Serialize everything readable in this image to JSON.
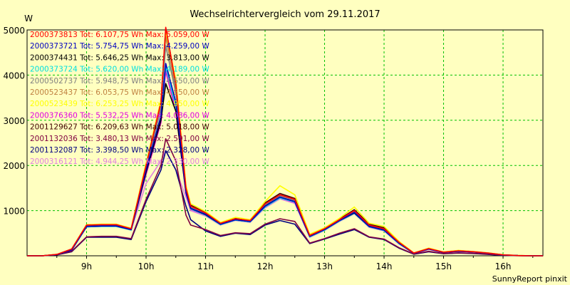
{
  "chart_data": {
    "type": "line",
    "title": "Wechselrichtervergleich vom 29.11.2017",
    "ylabel": "W",
    "footer": "SunnyReport pinxit",
    "x_ticks": [
      "9h",
      "10h",
      "11h",
      "12h",
      "13h",
      "14h",
      "15h",
      "16h"
    ],
    "y_ticks": [
      1000,
      2000,
      3000,
      4000,
      5000
    ],
    "xlim": [
      8.0,
      16.67
    ],
    "ylim": [
      0,
      5000
    ],
    "grid": true,
    "legend_placement": "top-left",
    "x": [
      8.0,
      8.25,
      8.5,
      8.75,
      9.0,
      9.25,
      9.5,
      9.75,
      10.0,
      10.25,
      10.33,
      10.5,
      10.67,
      10.75,
      11.0,
      11.25,
      11.5,
      11.75,
      12.0,
      12.25,
      12.5,
      12.75,
      13.0,
      13.25,
      13.5,
      13.75,
      14.0,
      14.25,
      14.5,
      14.75,
      15.0,
      15.25,
      15.5,
      15.75,
      16.0,
      16.25,
      16.5,
      16.67
    ],
    "series": [
      {
        "name": "2000373813 Tot: 6.107,75 Wh Max: 5.059,00 W",
        "color": "#ff0000",
        "values": [
          0,
          0,
          30,
          150,
          680,
          690,
          690,
          600,
          2000,
          3400,
          5059,
          3800,
          1500,
          1100,
          950,
          720,
          820,
          780,
          1150,
          1350,
          1250,
          450,
          600,
          800,
          1000,
          680,
          600,
          300,
          60,
          160,
          80,
          110,
          90,
          60,
          20,
          5,
          0,
          0
        ]
      },
      {
        "name": "2000373721 Tot: 5.754,75 Wh Max: 4.259,00 W",
        "color": "#0000c0",
        "values": [
          0,
          0,
          25,
          130,
          650,
          660,
          660,
          580,
          1900,
          3100,
          4259,
          3400,
          1400,
          1050,
          920,
          700,
          800,
          760,
          1100,
          1300,
          1200,
          430,
          580,
          780,
          960,
          650,
          570,
          280,
          55,
          150,
          75,
          100,
          85,
          55,
          18,
          4,
          0,
          0
        ]
      },
      {
        "name": "2000374431 Tot: 5.646,25 Wh Max: 3.813,00 W",
        "color": "#000000",
        "values": [
          0,
          0,
          25,
          130,
          650,
          660,
          660,
          580,
          1850,
          3000,
          3813,
          3200,
          1400,
          1050,
          910,
          700,
          800,
          760,
          1100,
          1300,
          1200,
          430,
          580,
          780,
          950,
          650,
          570,
          280,
          55,
          150,
          75,
          100,
          85,
          55,
          18,
          4,
          0,
          0
        ]
      },
      {
        "name": "2000373724 Tot: 5.620,00 Wh Max: 4.189,00 W",
        "color": "#00e0e0",
        "values": [
          0,
          0,
          25,
          130,
          640,
          650,
          650,
          570,
          1850,
          3050,
          4189,
          3300,
          1400,
          1040,
          900,
          690,
          790,
          750,
          1080,
          1280,
          1190,
          420,
          570,
          770,
          940,
          640,
          560,
          270,
          55,
          150,
          75,
          100,
          85,
          55,
          18,
          4,
          0,
          0
        ]
      },
      {
        "name": "2000502737 Tot: 5.948,75 Wh Max: 4.650,00 W",
        "color": "#808080",
        "values": [
          0,
          0,
          28,
          140,
          670,
          680,
          680,
          590,
          1950,
          3250,
          4650,
          3600,
          1450,
          1080,
          930,
          710,
          810,
          770,
          1120,
          1330,
          1230,
          440,
          590,
          790,
          980,
          670,
          590,
          290,
          58,
          155,
          78,
          105,
          88,
          58,
          19,
          5,
          0,
          0
        ]
      },
      {
        "name": "2000523437 Tot: 6.053,75 Wh Max: 4.850,00 W",
        "color": "#c08040",
        "values": [
          0,
          0,
          30,
          145,
          675,
          685,
          685,
          595,
          1980,
          3350,
          4850,
          3700,
          1480,
          1090,
          940,
          715,
          815,
          775,
          1140,
          1340,
          1240,
          445,
          595,
          795,
          990,
          675,
          595,
          295,
          60,
          158,
          79,
          108,
          89,
          59,
          20,
          5,
          0,
          0
        ]
      },
      {
        "name": "2000523439 Tot: 6.253,25 Wh Max: 4.950,00 W",
        "color": "#ffff00",
        "values": [
          0,
          0,
          30,
          150,
          690,
          700,
          700,
          610,
          2050,
          3450,
          4950,
          3900,
          1550,
          1150,
          980,
          740,
          850,
          800,
          1200,
          1550,
          1350,
          480,
          620,
          830,
          1080,
          720,
          650,
          320,
          65,
          170,
          85,
          120,
          95,
          65,
          22,
          6,
          0,
          0
        ]
      },
      {
        "name": "2000376360 Tot: 5.532,25 Wh Max: 4.086,00 W",
        "color": "#e000e0",
        "values": [
          0,
          0,
          25,
          130,
          640,
          650,
          650,
          570,
          1800,
          2950,
          4086,
          3200,
          1380,
          1030,
          900,
          690,
          790,
          750,
          1080,
          1280,
          1180,
          420,
          570,
          770,
          940,
          640,
          560,
          270,
          55,
          150,
          75,
          100,
          85,
          55,
          18,
          4,
          0,
          0
        ]
      },
      {
        "name": "2001129627 Tot: 6.209,63 Wh Max: 5.018,00 W",
        "color": "#400000",
        "values": [
          0,
          0,
          30,
          150,
          685,
          695,
          695,
          605,
          2020,
          3420,
          5018,
          3850,
          1520,
          1120,
          960,
          730,
          830,
          790,
          1170,
          1380,
          1270,
          460,
          610,
          810,
          1020,
          700,
          620,
          310,
          62,
          165,
          82,
          115,
          92,
          62,
          21,
          6,
          0,
          0
        ]
      },
      {
        "name": "2001132036 Tot: 3.480,13 Wh Max: 2.591,00 W",
        "color": "#800040",
        "values": [
          0,
          0,
          20,
          100,
          420,
          430,
          430,
          380,
          1250,
          2000,
          2591,
          2100,
          900,
          680,
          580,
          450,
          510,
          490,
          700,
          820,
          760,
          280,
          380,
          500,
          600,
          420,
          370,
          180,
          40,
          100,
          50,
          65,
          55,
          35,
          12,
          3,
          0,
          0
        ]
      },
      {
        "name": "2001132087 Tot: 3.398,50 Wh Max: 2.328,00 W",
        "color": "#000080",
        "values": [
          0,
          0,
          20,
          90,
          410,
          410,
          410,
          360,
          1200,
          1900,
          2328,
          1900,
          1100,
          800,
          550,
          430,
          500,
          470,
          680,
          780,
          700,
          270,
          370,
          480,
          580,
          410,
          360,
          170,
          35,
          90,
          45,
          60,
          50,
          30,
          10,
          3,
          0,
          0
        ]
      },
      {
        "name": "2000316121 Tot: 4.944,25 Wh Max: 2.330,00 W",
        "color": "#e080e0",
        "values": [
          0,
          0,
          25,
          130,
          640,
          650,
          650,
          570,
          1600,
          2100,
          2330,
          1900,
          1300,
          1000,
          880,
          680,
          780,
          740,
          1060,
          1260,
          1160,
          410,
          560,
          760,
          930,
          630,
          550,
          260,
          50,
          140,
          70,
          95,
          80,
          50,
          17,
          4,
          0,
          0
        ]
      }
    ]
  }
}
